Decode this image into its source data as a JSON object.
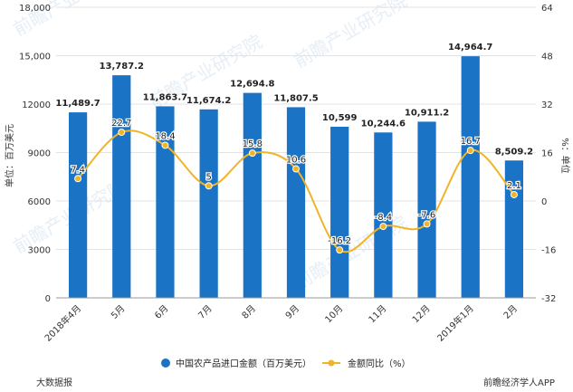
{
  "chart_data": {
    "type": "bar",
    "categories": [
      "2018年4月",
      "5月",
      "6月",
      "7月",
      "8月",
      "9月",
      "10月",
      "11月",
      "12月",
      "2019年1月",
      "2月"
    ],
    "series": [
      {
        "name": "中国农产品进口金额（百万美元）",
        "chart_type": "bar",
        "axis": "left",
        "color": "#1a73c4",
        "values": [
          11489.7,
          13787.2,
          11863.7,
          11674.2,
          12694.8,
          11807.5,
          10599,
          10244.6,
          10911.2,
          14964.7,
          8509.2
        ],
        "labels": [
          "11,489.7",
          "13,787.2",
          "11,863.7",
          "11,674.2",
          "12,694.8",
          "11,807.5",
          "10,599",
          "10,244.6",
          "10,911.2",
          "14,964.7",
          "8,509.2"
        ]
      },
      {
        "name": "金额同比（%）",
        "chart_type": "line",
        "axis": "right",
        "color": "#f0b429",
        "values": [
          7.4,
          22.7,
          18.4,
          5,
          15.8,
          10.6,
          -16.2,
          -8.4,
          -7.6,
          16.7,
          2.1
        ],
        "labels": [
          "7.4",
          "22.7",
          "18.4",
          "5",
          "15.8",
          "10.6",
          "-16.2",
          "-8.4",
          "-7.6",
          "16.7",
          "2.1"
        ]
      }
    ],
    "ylabel": "单位：百万美元",
    "y2label": "%：单位",
    "ylim": [
      0,
      18000
    ],
    "y2lim": [
      -32,
      64
    ],
    "yticks": [
      "0",
      "3000",
      "6000",
      "9000",
      "12000",
      "15,000",
      "18,000"
    ],
    "y2ticks": [
      "-32",
      "-16",
      "0",
      "16",
      "32",
      "48",
      "64"
    ],
    "legend_position": "bottom-center"
  },
  "watermark": "前瞻产业研究院",
  "source_left": "大数据报",
  "source_right": "前瞻经济学人APP"
}
